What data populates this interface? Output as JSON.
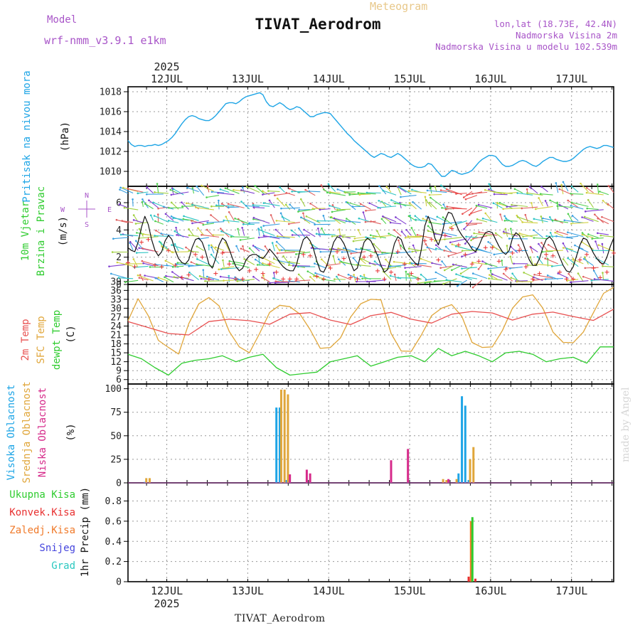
{
  "header": {
    "meteogram_label": "Meteogram",
    "model_label": "Model",
    "model_version": "wrf-nmm_v3.9.1 e1km",
    "station": "TIVAT_Aerodrom",
    "lonlat": "lon,lat (18.73E, 42.4N)",
    "altitude": "Nadmorska Visina 2m",
    "model_altitude": "Nadmorska Visina u modelu 102.539m",
    "footer_station": "TIVAT_Aerodrom",
    "credit": "made by Angel"
  },
  "time_axis": {
    "year": "2025",
    "days": [
      "12JUL",
      "13JUL",
      "14JUL",
      "15JUL",
      "16JUL",
      "17JUL"
    ]
  },
  "colors": {
    "pressure": "#1ea5e6",
    "temp2m": "#e85050",
    "sfctemp": "#e0a63a",
    "dewpt": "#2fcc2f",
    "wind_speed": "#111111",
    "gust_marks": "#e83030",
    "cloud_high": "#1ea5e6",
    "cloud_mid": "#e0a63a",
    "cloud_low": "#d62a8a",
    "precip_total": "#2fcc2f",
    "precip_conv": "#e83030",
    "precip_strat": "#f07a2a",
    "snow": "#4444dd",
    "grad": "#2ac8c0",
    "arrows": [
      "#2ec4c4",
      "#3aa0e0",
      "#50d050",
      "#a0d040",
      "#d0d040",
      "#e06060",
      "#8040d0"
    ],
    "compass": "#a855c8"
  },
  "chart_data": [
    {
      "id": "pressure",
      "type": "line",
      "ylabel_lines": [
        "Pritisak na nivou mora",
        "(hPa)"
      ],
      "ylim": [
        1008.5,
        1018.5
      ],
      "yticks": [
        "1010",
        "1012",
        "1014",
        "1016",
        "1018"
      ],
      "grid": true,
      "series": [
        {
          "name": "Pritisak na nivou mora",
          "x": [
            0,
            1,
            2,
            3,
            4,
            5,
            6,
            7,
            8,
            9,
            10,
            11,
            12,
            13,
            14,
            15,
            16,
            17,
            18,
            19,
            20,
            21,
            22,
            23,
            24,
            25,
            26,
            27,
            28,
            29,
            30,
            31,
            32,
            33,
            34,
            35,
            36,
            37,
            38,
            39,
            40,
            41,
            42,
            43,
            44,
            45,
            46,
            47,
            48,
            49,
            50,
            51,
            52,
            53,
            54,
            55,
            56,
            57,
            58,
            59,
            60,
            61,
            62,
            63,
            64,
            65,
            66,
            67,
            68,
            69,
            70,
            71,
            72,
            73,
            74,
            75,
            76,
            77,
            78,
            79,
            80,
            81,
            82,
            83,
            84,
            85,
            86,
            87,
            88,
            89,
            90,
            91,
            92,
            93,
            94,
            95,
            96,
            97,
            98,
            99,
            100,
            101,
            102,
            103,
            104,
            105,
            106,
            107,
            108,
            109,
            110,
            111,
            112,
            113,
            114,
            115,
            116,
            117,
            118,
            119,
            120,
            121,
            122,
            123,
            124,
            125,
            126,
            127,
            128,
            129,
            130,
            131,
            132,
            133,
            134,
            135,
            136,
            137,
            138,
            139,
            140,
            141,
            142,
            143,
            144
          ],
          "values": [
            1013.1,
            1012.7,
            1012.5,
            1012.6,
            1012.6,
            1012.5,
            1012.6,
            1012.6,
            1012.7,
            1012.6,
            1012.7,
            1012.9,
            1013.1,
            1013.4,
            1013.8,
            1014.3,
            1014.8,
            1015.2,
            1015.5,
            1015.6,
            1015.5,
            1015.3,
            1015.2,
            1015.1,
            1015.1,
            1015.3,
            1015.6,
            1016.0,
            1016.4,
            1016.8,
            1016.9,
            1016.9,
            1016.8,
            1017.0,
            1017.3,
            1017.5,
            1017.6,
            1017.7,
            1017.8,
            1017.9,
            1017.7,
            1017.0,
            1016.6,
            1016.5,
            1016.7,
            1016.9,
            1016.7,
            1016.4,
            1016.2,
            1016.3,
            1016.5,
            1016.4,
            1016.1,
            1015.8,
            1015.5,
            1015.5,
            1015.7,
            1015.8,
            1015.9,
            1015.9,
            1015.8,
            1015.4,
            1015.0,
            1014.6,
            1014.2,
            1013.8,
            1013.5,
            1013.1,
            1012.8,
            1012.5,
            1012.2,
            1011.9,
            1011.6,
            1011.4,
            1011.6,
            1011.8,
            1011.7,
            1011.5,
            1011.4,
            1011.6,
            1011.8,
            1011.6,
            1011.3,
            1011.0,
            1010.7,
            1010.5,
            1010.4,
            1010.4,
            1010.5,
            1010.8,
            1010.7,
            1010.3,
            1009.9,
            1009.5,
            1009.5,
            1009.8,
            1010.1,
            1010.0,
            1009.8,
            1009.7,
            1009.8,
            1009.9,
            1010.1,
            1010.5,
            1010.9,
            1011.2,
            1011.4,
            1011.6,
            1011.6,
            1011.5,
            1011.1,
            1010.7,
            1010.5,
            1010.5,
            1010.6,
            1010.8,
            1011.0,
            1011.1,
            1011.0,
            1010.8,
            1010.6,
            1010.5,
            1010.7,
            1011.0,
            1011.2,
            1011.4,
            1011.4,
            1011.2,
            1011.1,
            1011.0,
            1011.0,
            1011.1,
            1011.3,
            1011.6,
            1011.9,
            1012.2,
            1012.4,
            1012.5,
            1012.4,
            1012.3,
            1012.4,
            1012.6,
            1012.6,
            1012.5,
            1012.4
          ]
        }
      ]
    },
    {
      "id": "wind",
      "type": "line",
      "ylabel_lines": [
        "10m Vjetar",
        "Brzina i Pravac",
        "(m/s)"
      ],
      "compass": {
        "n": "N",
        "s": "S",
        "e": "E",
        "w": "W"
      },
      "ylim": [
        0,
        7.2
      ],
      "yticks": [
        "0",
        "2",
        "4",
        "6"
      ],
      "grid": true,
      "series": [
        {
          "name": "Brzina",
          "x": [
            0,
            1,
            2,
            3,
            4,
            5,
            6,
            7,
            8,
            9,
            10,
            11,
            12,
            13,
            14,
            15,
            16,
            17,
            18,
            19,
            20,
            21,
            22,
            23,
            24,
            25,
            26,
            27,
            28,
            29,
            30,
            31,
            32,
            33,
            34,
            35,
            36,
            37,
            38,
            39,
            40,
            41,
            42,
            43,
            44,
            45,
            46,
            47,
            48,
            49,
            50,
            51,
            52,
            53,
            54,
            55,
            56,
            57,
            58,
            59,
            60,
            61,
            62,
            63,
            64,
            65,
            66,
            67,
            68,
            69,
            70,
            71,
            72,
            73,
            74,
            75,
            76,
            77,
            78,
            79,
            80,
            81,
            82,
            83,
            84,
            85,
            86,
            87,
            88,
            89,
            90,
            91,
            92,
            93,
            94,
            95,
            96,
            97,
            98,
            99,
            100,
            101,
            102,
            103,
            104,
            105,
            106,
            107,
            108,
            109,
            110,
            111,
            112,
            113,
            114,
            115,
            116,
            117,
            118,
            119,
            120,
            121,
            122,
            123,
            124,
            125,
            126,
            127,
            128,
            129,
            130,
            131,
            132,
            133,
            134,
            135,
            136,
            137,
            138,
            139,
            140,
            141,
            142,
            143,
            144
          ],
          "values": [
            2.7,
            2.5,
            2.4,
            3.1,
            4.2,
            5.0,
            4.4,
            3.3,
            2.5,
            2.1,
            2.4,
            3.2,
            3.6,
            3.3,
            2.5,
            1.9,
            1.6,
            1.5,
            1.8,
            2.7,
            3.3,
            3.4,
            3.1,
            2.4,
            1.5,
            1.2,
            1.9,
            2.9,
            3.4,
            3.2,
            2.6,
            1.9,
            1.3,
            1.0,
            1.2,
            1.8,
            2.1,
            2.2,
            2.2,
            2.0,
            1.9,
            2.2,
            2.6,
            2.3,
            2.0,
            1.6,
            1.3,
            1.1,
            1.0,
            1.0,
            1.5,
            2.5,
            3.3,
            3.5,
            3.2,
            2.6,
            1.7,
            1.0,
            0.9,
            1.4,
            2.3,
            3.1,
            3.5,
            3.4,
            3.0,
            2.4,
            1.6,
            1.0,
            1.2,
            2.2,
            3.1,
            3.4,
            3.2,
            2.7,
            2.1,
            1.4,
            0.9,
            1.1,
            2.0,
            3.0,
            3.5,
            3.3,
            2.6,
            2.2,
            1.9,
            1.6,
            1.4,
            2.6,
            4.3,
            5.0,
            4.4,
            3.4,
            2.9,
            3.6,
            4.7,
            5.3,
            5.2,
            4.6,
            4.0,
            3.6,
            3.3,
            3.0,
            2.6,
            2.4,
            2.8,
            3.4,
            3.8,
            3.9,
            3.8,
            3.3,
            2.8,
            2.4,
            2.2,
            2.5,
            3.4,
            3.8,
            3.6,
            3.1,
            2.4,
            1.8,
            1.4,
            1.4,
            1.9,
            2.7,
            3.3,
            3.5,
            3.2,
            2.6,
            2.0,
            1.4,
            1.0,
            0.9,
            1.3,
            2.1,
            2.9,
            3.4,
            3.3,
            2.8,
            2.3,
            1.9,
            1.6,
            1.5,
            2.0,
            2.8,
            3.4
          ]
        }
      ]
    },
    {
      "id": "temperature",
      "type": "line",
      "ylabel_lines": [
        "2m Temp",
        "SFC Temp",
        "dewpt Temp",
        "(C)"
      ],
      "ylim": [
        4.5,
        38
      ],
      "yticks": [
        "6",
        "9",
        "12",
        "15",
        "18",
        "21",
        "24",
        "27",
        "30",
        "33",
        "36",
        "39"
      ],
      "grid": true,
      "series": [
        {
          "name": "2m Temp",
          "x": [
            0,
            6,
            12,
            18,
            24,
            30,
            36,
            42,
            48,
            54,
            60,
            66,
            72,
            78,
            84,
            90,
            96,
            102,
            108,
            114,
            120,
            126,
            132,
            138,
            144
          ],
          "values": [
            25.5,
            23.5,
            21.5,
            21.0,
            25.5,
            26.3,
            25.8,
            24.6,
            28.0,
            28.5,
            26.0,
            24.5,
            27.5,
            28.6,
            26.3,
            25.0,
            28.0,
            28.9,
            28.4,
            26.0,
            28.0,
            28.7,
            27.2,
            25.9,
            29.7
          ]
        },
        {
          "name": "SFC Temp",
          "x": [
            0,
            3,
            6,
            9,
            12,
            15,
            18,
            21,
            24,
            27,
            30,
            33,
            36,
            39,
            42,
            45,
            48,
            51,
            54,
            57,
            60,
            63,
            66,
            69,
            72,
            75,
            78,
            81,
            84,
            87,
            90,
            93,
            96,
            99,
            102,
            105,
            108,
            111,
            114,
            117,
            120,
            123,
            126,
            129,
            132,
            135,
            138,
            141,
            144
          ],
          "values": [
            25.8,
            33.2,
            27.5,
            19.2,
            16.8,
            14.6,
            24.8,
            31.5,
            33.6,
            30.8,
            22.2,
            17.0,
            15.0,
            21.5,
            28.6,
            31.0,
            30.5,
            28.0,
            22.8,
            16.5,
            16.8,
            20.0,
            27.0,
            31.5,
            33.0,
            32.8,
            21.5,
            15.6,
            15.5,
            21.0,
            27.5,
            30.0,
            31.2,
            27.2,
            18.5,
            16.8,
            17.0,
            22.5,
            30.0,
            33.8,
            34.5,
            30.0,
            22.0,
            18.5,
            18.4,
            22.0,
            28.5,
            35.0,
            37.0
          ]
        },
        {
          "name": "dewpt Temp",
          "x": [
            0,
            4,
            8,
            12,
            16,
            20,
            24,
            28,
            32,
            36,
            40,
            44,
            48,
            52,
            56,
            60,
            64,
            68,
            72,
            76,
            80,
            84,
            88,
            92,
            96,
            100,
            104,
            108,
            112,
            116,
            120,
            124,
            128,
            132,
            136,
            140,
            144
          ],
          "values": [
            14.5,
            13.0,
            10.0,
            7.5,
            11.5,
            12.5,
            13.0,
            14.0,
            12.0,
            13.5,
            14.5,
            10.0,
            7.5,
            8.0,
            8.5,
            12.0,
            13.0,
            14.0,
            10.5,
            12.0,
            13.5,
            14.0,
            12.0,
            16.5,
            14.0,
            15.5,
            14.0,
            12.0,
            15.0,
            15.5,
            14.5,
            12.0,
            13.0,
            13.5,
            11.5,
            17.0,
            17.0
          ]
        }
      ]
    },
    {
      "id": "clouds",
      "type": "bar",
      "ylabel_lines": [
        "Visoka Oblacnost",
        "Srednja Oblacnost",
        "Niska Oblacnost",
        "(%)"
      ],
      "ylim": [
        0,
        105
      ],
      "yticks": [
        "0",
        "25",
        "50",
        "75",
        "100"
      ],
      "grid": true,
      "series": [
        {
          "name": "Visoka Oblacnost",
          "x": [
            5,
            44,
            45,
            47,
            98,
            99,
            100,
            101
          ],
          "values": [
            1,
            80,
            80,
            3,
            10,
            92,
            82,
            3
          ]
        },
        {
          "name": "Srednja Oblacnost",
          "x": [
            5,
            6,
            45,
            46,
            47,
            93,
            94,
            97,
            101,
            102
          ],
          "values": [
            5,
            5,
            99,
            99,
            94,
            4,
            3,
            4,
            25,
            38
          ]
        },
        {
          "name": "Niska Oblacnost",
          "x": [
            48,
            53,
            54,
            78,
            83,
            95
          ],
          "values": [
            9,
            14,
            10,
            24,
            36,
            4
          ]
        }
      ]
    },
    {
      "id": "precip",
      "type": "bar",
      "ylabel_lines": [
        "1hr Precip (mm)"
      ],
      "legend": [
        "Ukupna Kisa",
        "Konvek.Kisa",
        "Zaledj.Kisa",
        "Snijeg",
        "Grad"
      ],
      "ylim": [
        0,
        0.98
      ],
      "yticks": [
        "0",
        "0.2",
        "0.4",
        "0.6",
        "0.8"
      ],
      "grid": true,
      "series": [
        {
          "name": "Ukupna Kisa",
          "x": [
            102
          ],
          "values": [
            0.64
          ]
        },
        {
          "name": "Konvek.Kisa",
          "x": [
            101,
            103
          ],
          "values": [
            0.05,
            0.03
          ]
        },
        {
          "name": "Zaledj.Kisa",
          "x": [
            102
          ],
          "values": [
            0.6
          ]
        }
      ]
    }
  ]
}
